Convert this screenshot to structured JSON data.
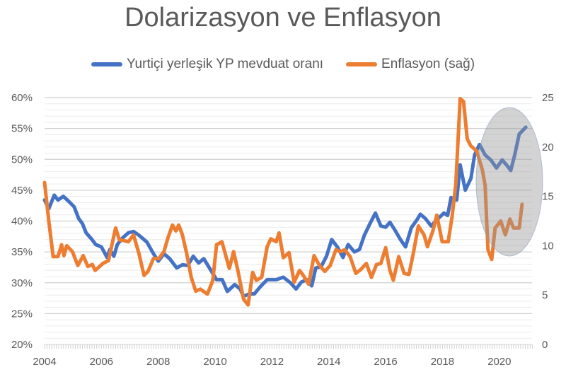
{
  "chart_data": {
    "type": "line",
    "title": "Dolarizasyon ve Enflasyon",
    "legend_position": "top",
    "grid": true,
    "x_ticks": [
      "2004",
      "2006",
      "2008",
      "2010",
      "2012",
      "2014",
      "2016",
      "2018",
      "2020"
    ],
    "xlim": [
      2004,
      2021.15
    ],
    "y_left": {
      "ticks": [
        "20%",
        "25%",
        "30%",
        "35%",
        "40%",
        "45%",
        "50%",
        "55%",
        "60%"
      ],
      "lim": [
        20,
        60
      ]
    },
    "y_right": {
      "ticks": [
        "0",
        "5",
        "10",
        "15",
        "20",
        "25"
      ],
      "lim": [
        0,
        25
      ]
    },
    "annotation": "shaded ellipse highlighting 2019-2020",
    "series": [
      {
        "name": "Yurtiçi yerleşik YP mevduat oranı",
        "axis": "left",
        "color": "#4472C4",
        "points": [
          [
            2004.0,
            43.4
          ],
          [
            2004.15,
            42
          ],
          [
            2004.34,
            44.2
          ],
          [
            2004.47,
            43.4
          ],
          [
            2004.66,
            44
          ],
          [
            2004.85,
            43.2
          ],
          [
            2005.04,
            42.3
          ],
          [
            2005.2,
            40.4
          ],
          [
            2005.33,
            39.6
          ],
          [
            2005.46,
            38.1
          ],
          [
            2005.65,
            37.1
          ],
          [
            2005.8,
            36.2
          ],
          [
            2006.0,
            35.8
          ],
          [
            2006.2,
            34.1
          ],
          [
            2006.3,
            35.4
          ],
          [
            2006.44,
            34.3
          ],
          [
            2006.56,
            36.2
          ],
          [
            2006.75,
            37.3
          ],
          [
            2006.95,
            38.1
          ],
          [
            2007.13,
            38.3
          ],
          [
            2007.32,
            37.7
          ],
          [
            2007.6,
            36.6
          ],
          [
            2007.83,
            34.7
          ],
          [
            2008.0,
            33.5
          ],
          [
            2008.2,
            34.7
          ],
          [
            2008.4,
            33.9
          ],
          [
            2008.65,
            32.4
          ],
          [
            2008.85,
            32.9
          ],
          [
            2009.04,
            32.8
          ],
          [
            2009.23,
            34.3
          ],
          [
            2009.42,
            33.2
          ],
          [
            2009.6,
            33.9
          ],
          [
            2009.8,
            32.4
          ],
          [
            2010.05,
            30.5
          ],
          [
            2010.25,
            30.5
          ],
          [
            2010.43,
            28.6
          ],
          [
            2010.69,
            29.7
          ],
          [
            2010.88,
            29
          ],
          [
            2011.0,
            27.8
          ],
          [
            2011.2,
            28.2
          ],
          [
            2011.38,
            28.2
          ],
          [
            2011.58,
            29.3
          ],
          [
            2011.83,
            30.5
          ],
          [
            2012.15,
            30.5
          ],
          [
            2012.4,
            30.9
          ],
          [
            2012.65,
            30
          ],
          [
            2012.85,
            29
          ],
          [
            2013.03,
            30.1
          ],
          [
            2013.22,
            30.5
          ],
          [
            2013.4,
            29.5
          ],
          [
            2013.54,
            32.4
          ],
          [
            2013.73,
            32.6
          ],
          [
            2013.92,
            34.3
          ],
          [
            2014.1,
            37
          ],
          [
            2014.3,
            35.8
          ],
          [
            2014.5,
            34.1
          ],
          [
            2014.68,
            36.2
          ],
          [
            2014.9,
            35
          ],
          [
            2015.08,
            35.4
          ],
          [
            2015.25,
            37.7
          ],
          [
            2015.45,
            39.6
          ],
          [
            2015.64,
            41.3
          ],
          [
            2015.83,
            39.2
          ],
          [
            2016.0,
            39
          ],
          [
            2016.15,
            39.8
          ],
          [
            2016.33,
            38.5
          ],
          [
            2016.52,
            37
          ],
          [
            2016.7,
            35.8
          ],
          [
            2016.9,
            38.9
          ],
          [
            2017.1,
            40.2
          ],
          [
            2017.22,
            41.1
          ],
          [
            2017.4,
            40.4
          ],
          [
            2017.6,
            39.2
          ],
          [
            2017.8,
            40.2
          ],
          [
            2018.05,
            41.3
          ],
          [
            2018.18,
            40.9
          ],
          [
            2018.3,
            43.8
          ],
          [
            2018.5,
            43.4
          ],
          [
            2018.62,
            49.1
          ],
          [
            2018.8,
            45
          ],
          [
            2019.0,
            46.9
          ],
          [
            2019.13,
            50.7
          ],
          [
            2019.3,
            52.4
          ],
          [
            2019.5,
            50.7
          ],
          [
            2019.7,
            49.9
          ],
          [
            2019.9,
            48.6
          ],
          [
            2020.1,
            49.9
          ],
          [
            2020.27,
            49
          ],
          [
            2020.4,
            48.2
          ],
          [
            2020.54,
            50.7
          ],
          [
            2020.7,
            54.1
          ],
          [
            2020.93,
            55.2
          ]
        ]
      },
      {
        "name": "Enflasyon (sağ)",
        "axis": "right",
        "color": "#ED7D31",
        "points": [
          [
            2004.0,
            16.4
          ],
          [
            2004.15,
            12.5
          ],
          [
            2004.3,
            8.9
          ],
          [
            2004.47,
            8.9
          ],
          [
            2004.6,
            10.1
          ],
          [
            2004.68,
            9
          ],
          [
            2004.78,
            10
          ],
          [
            2004.98,
            9.4
          ],
          [
            2005.17,
            8
          ],
          [
            2005.36,
            9
          ],
          [
            2005.52,
            7.9
          ],
          [
            2005.68,
            8.1
          ],
          [
            2005.78,
            7.5
          ],
          [
            2006.05,
            8.2
          ],
          [
            2006.25,
            8.5
          ],
          [
            2006.37,
            10.1
          ],
          [
            2006.5,
            11.8
          ],
          [
            2006.63,
            10.6
          ],
          [
            2006.82,
            10.5
          ],
          [
            2006.95,
            10.4
          ],
          [
            2007.13,
            11.1
          ],
          [
            2007.32,
            9.2
          ],
          [
            2007.5,
            7
          ],
          [
            2007.64,
            7.4
          ],
          [
            2007.83,
            8.7
          ],
          [
            2008.02,
            8.7
          ],
          [
            2008.2,
            9.4
          ],
          [
            2008.34,
            10.8
          ],
          [
            2008.5,
            12.1
          ],
          [
            2008.62,
            11.5
          ],
          [
            2008.72,
            12.1
          ],
          [
            2008.85,
            11.1
          ],
          [
            2009.0,
            9.2
          ],
          [
            2009.16,
            6.8
          ],
          [
            2009.32,
            5.4
          ],
          [
            2009.48,
            5.6
          ],
          [
            2009.73,
            5.1
          ],
          [
            2009.92,
            6.5
          ],
          [
            2010.05,
            10.1
          ],
          [
            2010.24,
            10.4
          ],
          [
            2010.5,
            7.7
          ],
          [
            2010.65,
            9.4
          ],
          [
            2010.8,
            7.5
          ],
          [
            2011.0,
            4.6
          ],
          [
            2011.16,
            4
          ],
          [
            2011.32,
            7.3
          ],
          [
            2011.45,
            6.5
          ],
          [
            2011.64,
            6.8
          ],
          [
            2011.83,
            9.9
          ],
          [
            2011.96,
            10.7
          ],
          [
            2012.15,
            10.4
          ],
          [
            2012.25,
            11.3
          ],
          [
            2012.4,
            8.8
          ],
          [
            2012.6,
            9.3
          ],
          [
            2012.78,
            6.3
          ],
          [
            2012.97,
            7.5
          ],
          [
            2013.1,
            7
          ],
          [
            2013.29,
            6.1
          ],
          [
            2013.48,
            9
          ],
          [
            2013.67,
            8
          ],
          [
            2013.86,
            7.4
          ],
          [
            2014.05,
            8
          ],
          [
            2014.25,
            9.6
          ],
          [
            2014.4,
            9.4
          ],
          [
            2014.56,
            9.6
          ],
          [
            2014.75,
            8.9
          ],
          [
            2014.95,
            7.2
          ],
          [
            2015.13,
            7.6
          ],
          [
            2015.32,
            8.2
          ],
          [
            2015.5,
            6.8
          ],
          [
            2015.68,
            8.1
          ],
          [
            2015.83,
            8.2
          ],
          [
            2016.0,
            9.8
          ],
          [
            2016.15,
            7.5
          ],
          [
            2016.27,
            6.5
          ],
          [
            2016.46,
            8.9
          ],
          [
            2016.65,
            7.2
          ],
          [
            2016.82,
            7.1
          ],
          [
            2016.97,
            9.2
          ],
          [
            2017.15,
            12
          ],
          [
            2017.35,
            11.1
          ],
          [
            2017.47,
            9.9
          ],
          [
            2017.66,
            11.5
          ],
          [
            2017.8,
            13.1
          ],
          [
            2017.99,
            10.4
          ],
          [
            2018.2,
            10.4
          ],
          [
            2018.34,
            13
          ],
          [
            2018.47,
            16.3
          ],
          [
            2018.62,
            24.9
          ],
          [
            2018.74,
            24.6
          ],
          [
            2018.87,
            20.8
          ],
          [
            2019.0,
            20.1
          ],
          [
            2019.2,
            19.6
          ],
          [
            2019.4,
            17.7
          ],
          [
            2019.5,
            16.1
          ],
          [
            2019.6,
            9.6
          ],
          [
            2019.73,
            8.6
          ],
          [
            2019.85,
            11.8
          ],
          [
            2020.05,
            12.5
          ],
          [
            2020.21,
            11.1
          ],
          [
            2020.37,
            12.7
          ],
          [
            2020.5,
            11.8
          ],
          [
            2020.7,
            11.8
          ],
          [
            2020.8,
            14.2
          ]
        ]
      }
    ]
  }
}
